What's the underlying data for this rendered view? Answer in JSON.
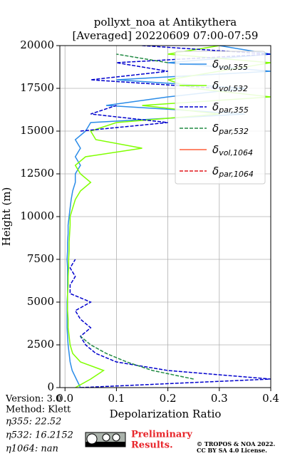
{
  "chart_data": {
    "type": "line",
    "title": [
      "pollyxt_noa at Antikythera",
      "[Averaged] 20220609 07:00-07:59"
    ],
    "xlabel": "Depolarization Ratio",
    "ylabel": "Height (m)",
    "xlim": [
      -0.01,
      0.4
    ],
    "xticks": [
      {
        "value": 0,
        "label": "0.0"
      },
      0.1,
      0.2,
      0.3,
      0.4
    ],
    "ylim": [
      0,
      20000
    ],
    "yticks": [
      0,
      2500,
      5000,
      7500,
      10000,
      12500,
      15000,
      17500,
      20000
    ],
    "grid": true,
    "legend": "upper right",
    "y": [
      0,
      500,
      1000,
      1500,
      2000,
      2500,
      3000,
      3500,
      4000,
      4500,
      5000,
      5500,
      6000,
      6500,
      7000,
      7500,
      8000,
      8500,
      9000,
      9500,
      10000,
      10500,
      11000,
      11500,
      12000,
      12500,
      13000,
      13500,
      14000,
      14500,
      15000,
      15500,
      16000,
      16500,
      17000,
      17500,
      18000,
      18500,
      19000,
      19500,
      20000
    ],
    "series": [
      {
        "name": "δvol,355",
        "color": "#2b8ce8",
        "linestyle": "solid",
        "values": [
          0.03,
          0.022,
          0.014,
          0.01,
          0.008,
          0.006,
          0.005,
          0.004,
          0.004,
          0.004,
          0.004,
          0.005,
          0.005,
          0.005,
          0.005,
          0.004,
          0.005,
          0.005,
          0.006,
          0.006,
          0.008,
          0.01,
          0.012,
          0.015,
          0.02,
          0.02,
          0.03,
          0.02,
          0.03,
          0.02,
          0.04,
          0.05,
          0.35,
          0.08,
          0.2,
          0.35,
          0.1,
          0.4,
          0.2,
          0.4,
          0.3
        ]
      },
      {
        "name": "δvol,532",
        "color": "#80ff00",
        "linestyle": "solid",
        "values": [
          0.02,
          0.05,
          0.075,
          0.03,
          0.015,
          0.01,
          0.008,
          0.006,
          0.006,
          0.005,
          0.005,
          0.005,
          0.006,
          0.006,
          0.007,
          0.007,
          0.008,
          0.008,
          0.009,
          0.01,
          0.01,
          0.015,
          0.02,
          0.03,
          0.05,
          0.03,
          0.02,
          0.04,
          0.15,
          0.06,
          0.05,
          0.1,
          0.3,
          0.15,
          0.4,
          0.25,
          0.2,
          0.3,
          0.4,
          0.2,
          0.3
        ]
      },
      {
        "name": "δpar,355",
        "color": "#0000cd",
        "linestyle": "dashed",
        "values": [
          0.03,
          0.4,
          0.2,
          0.1,
          0.06,
          0.04,
          0.03,
          0.05,
          0.03,
          0.02,
          0.05,
          0.01,
          0.01,
          0.02,
          0.01,
          0.02,
          null,
          null,
          null,
          null,
          null,
          null,
          null,
          null,
          null,
          null,
          null,
          null,
          null,
          null,
          0.03,
          0.2,
          0.05,
          0.1,
          null,
          0.3,
          0.05,
          0.2,
          0.1,
          0.4,
          0.15
        ]
      },
      {
        "name": "δpar,532",
        "color": "#228b44",
        "linestyle": "dashed",
        "values": [
          null,
          0.25,
          0.17,
          0.12,
          0.08,
          0.05,
          0.03,
          null,
          null,
          null,
          null,
          null,
          null,
          null,
          null,
          null,
          null,
          null,
          null,
          null,
          null,
          null,
          null,
          null,
          null,
          null,
          null,
          null,
          null,
          null,
          null,
          null,
          null,
          null,
          null,
          null,
          null,
          null,
          0.2,
          0.1,
          null
        ]
      },
      {
        "name": "δvol,1064",
        "color": "#ff5e3a",
        "linestyle": "solid",
        "values": [
          null,
          null,
          null,
          null,
          null,
          null,
          null,
          null,
          null,
          null,
          null,
          null,
          null,
          null,
          null,
          null,
          null,
          null,
          null,
          null,
          null,
          null,
          null,
          null,
          null,
          null,
          null,
          null,
          null,
          null,
          null,
          null,
          null,
          null,
          null,
          null,
          null,
          null,
          null,
          null,
          null
        ]
      },
      {
        "name": "δpar,1064",
        "color": "#e0161b",
        "linestyle": "dashed",
        "values": [
          null,
          null,
          null,
          null,
          null,
          null,
          null,
          null,
          null,
          null,
          null,
          null,
          null,
          null,
          null,
          null,
          null,
          null,
          null,
          null,
          null,
          null,
          null,
          null,
          null,
          null,
          null,
          null,
          null,
          null,
          null,
          null,
          null,
          null,
          null,
          null,
          null,
          null,
          null,
          null,
          null
        ]
      }
    ]
  },
  "info": [
    "Version: 3.0",
    "Method: Klett",
    "η355:  22.52",
    "η532: 16.2152",
    "η1064:    nan"
  ],
  "preliminary": [
    "Preliminary",
    "Results."
  ],
  "copyright": [
    "© TROPOS & NOA 2022.",
    "CC BY SA 4.0 License."
  ]
}
